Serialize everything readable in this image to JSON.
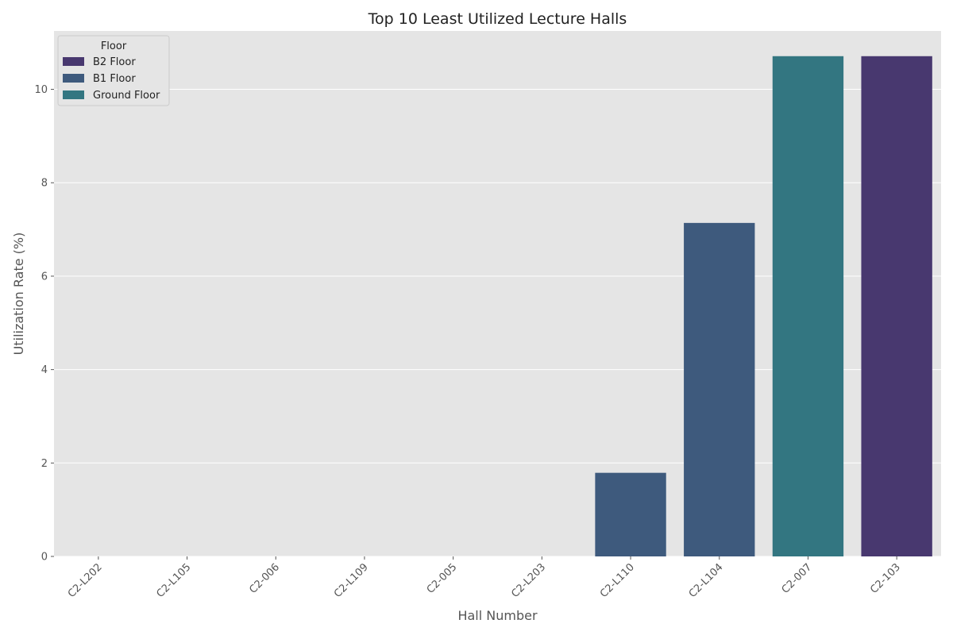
{
  "chart_data": {
    "type": "bar",
    "title": "Top 10 Least Utilized Lecture Halls",
    "xlabel": "Hall Number",
    "ylabel": "Utilization Rate (%)",
    "ylim": [
      0,
      11.25
    ],
    "yticks": [
      0,
      2,
      4,
      6,
      8,
      10
    ],
    "grid": true,
    "legend": {
      "title": "Floor",
      "placement": "top-left",
      "entries": [
        {
          "name": "B2 Floor",
          "color": "#48386f"
        },
        {
          "name": "B1 Floor",
          "color": "#3e5a7d"
        },
        {
          "name": "Ground Floor",
          "color": "#337681"
        }
      ]
    },
    "categories": [
      "C2-L202",
      "C2-L105",
      "C2-006",
      "C2-L109",
      "C2-005",
      "C2-L203",
      "C2-L110",
      "C2-L104",
      "C2-007",
      "C2-103"
    ],
    "values": [
      0,
      0,
      0,
      0,
      0,
      0,
      1.79,
      7.14,
      10.71,
      10.71
    ],
    "bar_floors": [
      null,
      null,
      null,
      null,
      null,
      null,
      "B1 Floor",
      "B1 Floor",
      "Ground Floor",
      "B2 Floor"
    ],
    "colors": {
      "plot_background": "#e5e5e5",
      "grid": "#ffffff",
      "B2 Floor": "#48386f",
      "B1 Floor": "#3e5a7d",
      "Ground Floor": "#337681"
    }
  }
}
